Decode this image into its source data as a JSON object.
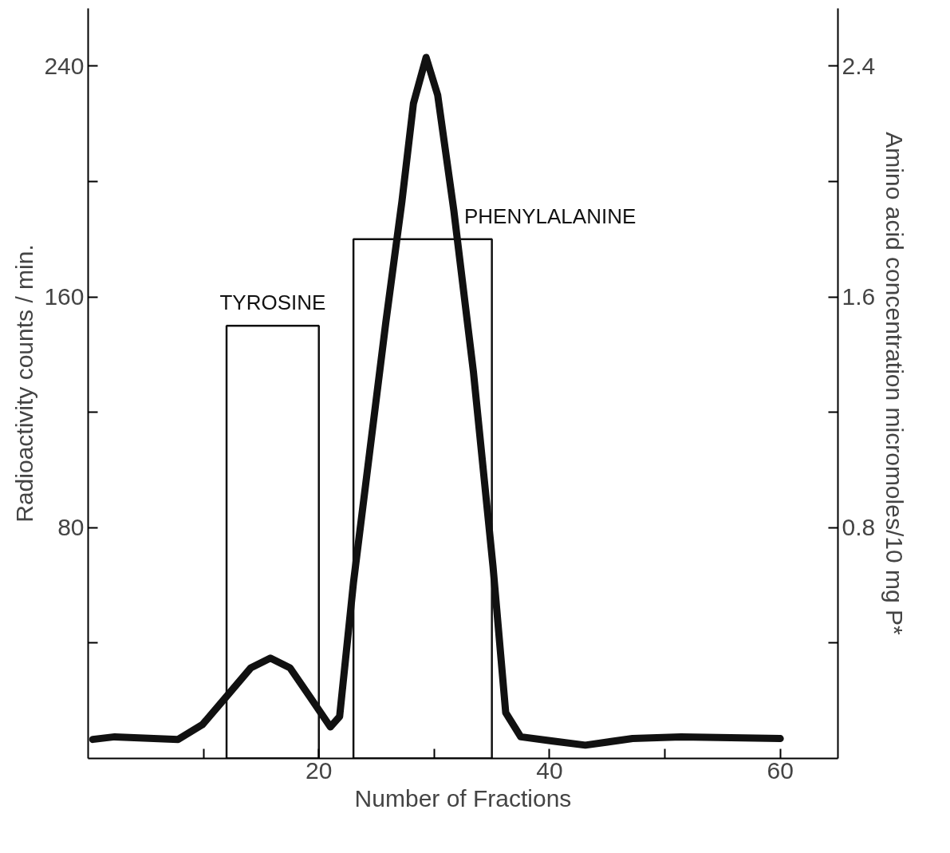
{
  "chart_data": {
    "type": "line",
    "xlabel": "Number of Fractions",
    "ylabel": "Radioactivity counts / min.",
    "y2label": "Amino acid concentration micromoles/10 mg P*",
    "xlim": [
      0,
      65
    ],
    "ylim": [
      0,
      260
    ],
    "y2lim": [
      0,
      2.6
    ],
    "xticks": [
      {
        "value": 10,
        "label": null
      },
      20,
      {
        "value": 30,
        "label": null
      },
      40,
      {
        "value": 50,
        "label": null
      },
      60
    ],
    "yticks": [
      {
        "value": 40,
        "label": null
      },
      80,
      {
        "value": 120,
        "label": null
      },
      160,
      {
        "value": 200,
        "label": null
      },
      240
    ],
    "y2ticks": [
      {
        "value": 0.4,
        "label": null
      },
      0.8,
      {
        "value": 1.2,
        "label": null
      },
      1.6,
      {
        "value": 2.0,
        "label": null
      },
      2.4
    ],
    "grid": false,
    "series": [
      {
        "color": "#111111",
        "x": [
          0.4,
          2.3,
          7.8,
          9.9,
          12,
          14.1,
          15.8,
          17.5,
          19.2,
          21,
          21.8,
          23,
          24.4,
          25.8,
          27.2,
          28.2,
          29.3,
          30.3,
          31.7,
          33.4,
          35.1,
          36.2,
          37.5,
          40.3,
          43.1,
          47.2,
          51.4,
          60
        ],
        "values": [
          6.6,
          7.5,
          6.6,
          11.7,
          21.5,
          31.4,
          34.8,
          31.4,
          21.5,
          10.9,
          14.5,
          60.9,
          106,
          151,
          193,
          227,
          243,
          230,
          190,
          134,
          66.5,
          15.9,
          7.5,
          6,
          4.6,
          6.9,
          7.5,
          6.9
        ]
      },
      {
        "type": "histogram",
        "color": "#111111",
        "axis": "y2",
        "bins": [
          12,
          20,
          23,
          35
        ],
        "values": [
          1.5,
          null,
          1.8
        ]
      }
    ],
    "annotations": [
      "TYROSINE",
      "PHENYLALANINE"
    ]
  }
}
